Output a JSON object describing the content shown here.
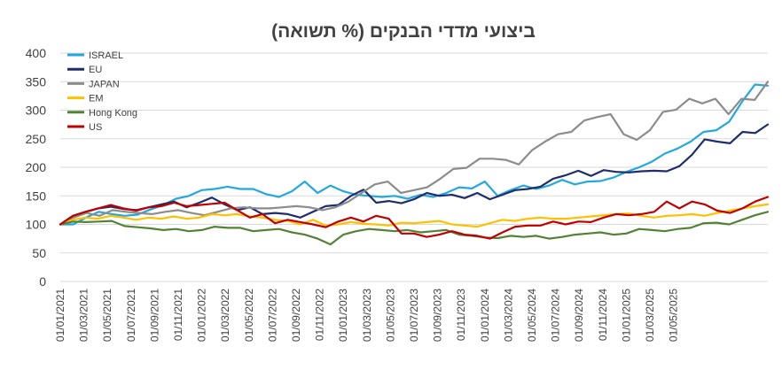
{
  "chart_data": {
    "type": "line",
    "title": "ביצועי מדדי הבנקים (% תשואה)",
    "ylim": [
      0,
      400
    ],
    "yticks": [
      0,
      50,
      100,
      150,
      200,
      250,
      300,
      350,
      400
    ],
    "xtick_labels": [
      "01/01/2021",
      "01/03/2021",
      "01/05/2021",
      "01/07/2021",
      "01/09/2021",
      "01/11/2021",
      "01/01/2022",
      "01/03/2022",
      "01/05/2022",
      "01/07/2022",
      "01/09/2022",
      "01/11/2022",
      "01/01/2023",
      "01/03/2023",
      "01/05/2023",
      "01/07/2023",
      "01/09/2023",
      "01/11/2023",
      "01/01/2024",
      "01/03/2024",
      "01/05/2024",
      "01/07/2024",
      "01/09/2024",
      "01/11/2024",
      "01/01/2025",
      "01/03/2025",
      "01/05/2025"
    ],
    "x_start": "2021-01",
    "x_step": "month",
    "grid": true,
    "legend_position": "top-left",
    "series": [
      {
        "name": "ISRAEL",
        "color": "#22a8e0",
        "values": [
          100,
          100,
          112,
          122,
          118,
          115,
          117,
          126,
          134,
          145,
          150,
          160,
          162,
          166,
          162,
          162,
          153,
          148,
          158,
          175,
          155,
          168,
          158,
          152,
          150,
          148,
          150,
          145,
          152,
          148,
          155,
          165,
          163,
          175,
          150,
          160,
          168,
          162,
          168,
          178,
          170,
          175,
          176,
          182,
          192,
          200,
          210,
          224,
          233,
          245,
          262,
          265,
          280,
          315,
          345,
          343
        ]
      },
      {
        "name": "EU",
        "color": "#1f2d6b",
        "values": [
          100,
          115,
          122,
          128,
          131,
          127,
          125,
          130,
          135,
          140,
          130,
          138,
          147,
          135,
          125,
          130,
          118,
          120,
          118,
          112,
          122,
          132,
          134,
          150,
          161,
          138,
          141,
          137,
          144,
          155,
          150,
          152,
          146,
          155,
          144,
          152,
          160,
          162,
          166,
          180,
          186,
          194,
          185,
          195,
          192,
          191,
          193,
          194,
          193,
          202,
          222,
          249,
          245,
          242,
          262,
          260,
          275
        ]
      },
      {
        "name": "JAPAN",
        "color": "#8c8c8c",
        "values": [
          100,
          112,
          120,
          115,
          125,
          122,
          120,
          118,
          122,
          125,
          120,
          116,
          122,
          128,
          130,
          128,
          128,
          130,
          132,
          130,
          125,
          130,
          140,
          155,
          170,
          175,
          155,
          160,
          165,
          180,
          197,
          199,
          215,
          215,
          213,
          205,
          230,
          245,
          258,
          262,
          282,
          288,
          293,
          258,
          248,
          265,
          297,
          301,
          320,
          312,
          320,
          293,
          320,
          318,
          350
        ]
      },
      {
        "name": "EM",
        "color": "#ffc000",
        "values": [
          100,
          108,
          112,
          110,
          115,
          112,
          108,
          112,
          110,
          114,
          110,
          112,
          118,
          116,
          118,
          114,
          112,
          108,
          106,
          100,
          108,
          98,
          100,
          104,
          101,
          100,
          98,
          103,
          102,
          104,
          106,
          100,
          98,
          96,
          102,
          108,
          106,
          110,
          112,
          110,
          110,
          112,
          114,
          116,
          118,
          119,
          115,
          112,
          115,
          116,
          118,
          115,
          120,
          124,
          128,
          132,
          135
        ]
      },
      {
        "name": "Hong Kong",
        "color": "#548235",
        "values": [
          100,
          105,
          104,
          105,
          106,
          97,
          95,
          93,
          90,
          92,
          88,
          90,
          96,
          94,
          94,
          88,
          90,
          92,
          86,
          82,
          75,
          65,
          82,
          88,
          92,
          90,
          88,
          90,
          86,
          88,
          90,
          82,
          80,
          77,
          76,
          80,
          78,
          80,
          75,
          78,
          82,
          84,
          86,
          82,
          84,
          92,
          90,
          88,
          92,
          94,
          102,
          103,
          100,
          108,
          116,
          122
        ]
      },
      {
        "name": "US",
        "color": "#c00000",
        "values": [
          100,
          115,
          122,
          128,
          134,
          128,
          124,
          130,
          132,
          138,
          132,
          134,
          136,
          138,
          125,
          112,
          118,
          102,
          108,
          104,
          100,
          95,
          105,
          112,
          105,
          115,
          110,
          84,
          84,
          78,
          82,
          88,
          82,
          80,
          75,
          86,
          96,
          98,
          98,
          105,
          100,
          105,
          104,
          112,
          118,
          116,
          118,
          122,
          140,
          128,
          140,
          135,
          124,
          120,
          128,
          140,
          148
        ]
      }
    ]
  }
}
